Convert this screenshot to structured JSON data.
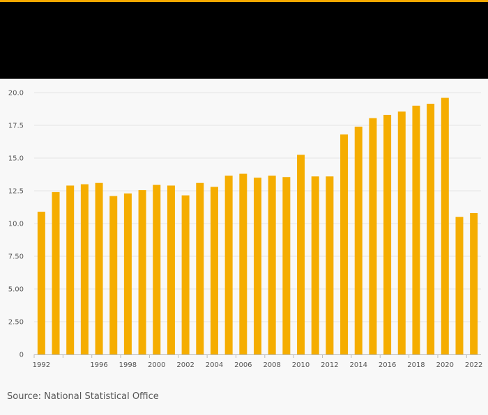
{
  "colors": {
    "accent": "#f5a800",
    "header": "#000000",
    "bar": "#f5ad00",
    "background": "#f8f8f8",
    "grid": "#e3e3e3"
  },
  "source_note": "Source: National Statistical Office",
  "chart_data": {
    "type": "bar",
    "title": "",
    "xlabel": "",
    "ylabel": "",
    "categories": [
      "1992",
      "1993",
      "1994",
      "1995",
      "1996",
      "1997",
      "1998",
      "1999",
      "2000",
      "2001",
      "2002",
      "2003",
      "2004",
      "2005",
      "2006",
      "2007",
      "2008",
      "2009",
      "2010",
      "2011",
      "2012",
      "2013",
      "2014",
      "2015",
      "2016",
      "2017",
      "2018",
      "2019",
      "2020",
      "2021",
      "2022"
    ],
    "x_tick_labels": [
      "1992",
      "1996",
      "1998",
      "2000",
      "2002",
      "2004",
      "2006",
      "2008",
      "2010",
      "2012",
      "2014",
      "2016",
      "2018",
      "2020",
      "2022"
    ],
    "series": [
      {
        "values": [
          10.9,
          12.4,
          12.9,
          13.0,
          13.1,
          12.1,
          12.3,
          12.55,
          12.95,
          12.9,
          12.15,
          13.1,
          12.8,
          13.65,
          13.8,
          13.5,
          13.65,
          13.55,
          15.25,
          13.6,
          13.6,
          16.8,
          17.4,
          18.05,
          18.3,
          18.55,
          19.0,
          19.15,
          19.6,
          10.5,
          10.8
        ]
      }
    ],
    "ylim": [
      0,
      20
    ],
    "y_ticks": [
      0,
      2.5,
      5.0,
      7.5,
      10.0,
      12.5,
      15.0,
      17.5,
      20.0
    ],
    "y_tick_labels": [
      "0",
      "2.50",
      "5.00",
      "7.50",
      "10.0",
      "12.5",
      "15.0",
      "17.5",
      "20.0"
    ],
    "grid": true
  }
}
